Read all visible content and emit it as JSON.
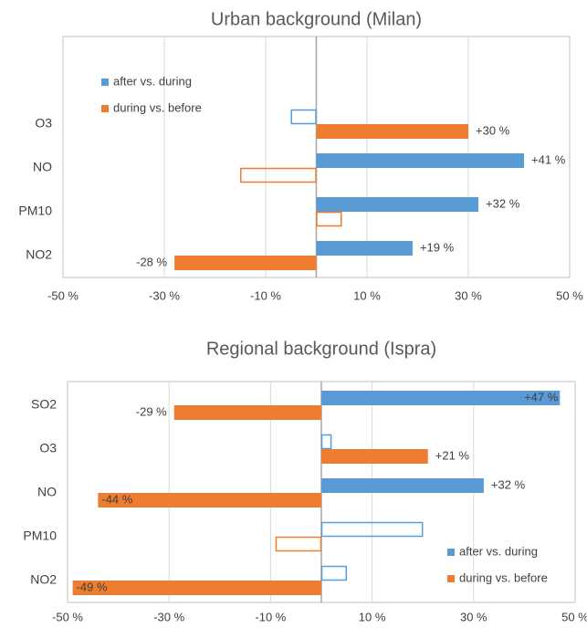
{
  "chart_data": [
    {
      "type": "bar",
      "orientation": "horizontal",
      "title": "Urban background (Milan)",
      "categories": [
        "O3",
        "NO",
        "PM10",
        "NO2"
      ],
      "series": [
        {
          "name": "after vs. during",
          "color": "#5b9bd5",
          "values": [
            -5,
            41,
            32,
            19
          ],
          "value_labels": [
            null,
            "+41 %",
            "+32 %",
            "+19 %"
          ],
          "hollow": [
            true,
            false,
            false,
            false
          ]
        },
        {
          "name": "during vs. before",
          "color": "#ed7d31",
          "values": [
            30,
            -15,
            5,
            -28
          ],
          "value_labels": [
            "+30 %",
            null,
            null,
            "-28 %"
          ],
          "hollow": [
            false,
            true,
            true,
            false
          ]
        }
      ],
      "xlim": [
        -50,
        50
      ],
      "xticks": [
        {
          "value": -50,
          "label": "-50 %"
        },
        {
          "value": -30,
          "label": "-30 %"
        },
        {
          "value": -10,
          "label": "-10 %"
        },
        {
          "value": 10,
          "label": "10 %"
        },
        {
          "value": 30,
          "label": "30 %"
        },
        {
          "value": 50,
          "label": "50 %"
        }
      ],
      "grid": true,
      "legend": "top-left"
    },
    {
      "type": "bar",
      "orientation": "horizontal",
      "title": "Regional background (Ispra)",
      "categories": [
        "SO2",
        "O3",
        "NO",
        "PM10",
        "NO2"
      ],
      "series": [
        {
          "name": "after vs. during",
          "color": "#5b9bd5",
          "values": [
            47,
            2,
            32,
            20,
            5
          ],
          "value_labels": [
            "+47 %",
            null,
            "+32 %",
            null,
            null
          ],
          "hollow": [
            false,
            true,
            false,
            true,
            true
          ]
        },
        {
          "name": "during vs. before",
          "color": "#ed7d31",
          "values": [
            -29,
            21,
            -44,
            -9,
            -49
          ],
          "value_labels": [
            "-29 %",
            "+21 %",
            "-44 %",
            null,
            "-49 %"
          ],
          "hollow": [
            false,
            false,
            false,
            true,
            false
          ]
        }
      ],
      "xlim": [
        -50,
        50
      ],
      "xticks": [
        {
          "value": -50,
          "label": "-50 %"
        },
        {
          "value": -30,
          "label": "-30 %"
        },
        {
          "value": -10,
          "label": "-10 %"
        },
        {
          "value": 10,
          "label": "10 %"
        },
        {
          "value": 30,
          "label": "30 %"
        },
        {
          "value": 50,
          "label": "50 %"
        }
      ],
      "grid": true,
      "legend": "bottom-right"
    }
  ]
}
